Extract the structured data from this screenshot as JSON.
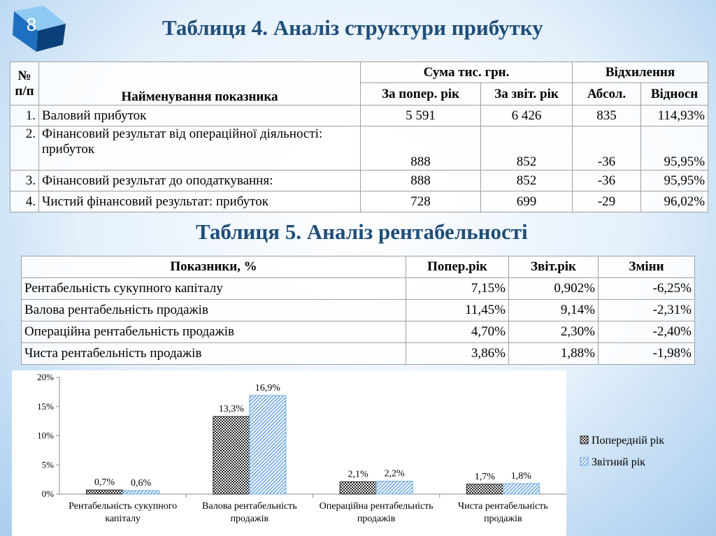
{
  "slide_number": "8",
  "table4": {
    "title": "Таблиця 4. Аналіз структури прибутку",
    "header": {
      "num": "№ п/п",
      "name": "Найменування показника",
      "sum": "Сума тис. грн.",
      "dev": "Відхилення",
      "sub": [
        "За попер. рік",
        "За звіт. рік",
        "Абсол.",
        "Відносн"
      ]
    },
    "rows": [
      [
        "1.",
        "Валовий прибуток",
        "5 591",
        "6 426",
        "835",
        "114,93%"
      ],
      [
        "2.",
        "Фінансовий результат від операційної діяльності: прибуток",
        "888",
        "852",
        "-36",
        "95,95%"
      ],
      [
        "3.",
        "Фінансовий результат до оподаткування:",
        "888",
        "852",
        "-36",
        "95,95%"
      ],
      [
        "4.",
        "Чистий фінансовий результат: прибуток",
        "728",
        "699",
        "-29",
        "96,02%"
      ]
    ]
  },
  "table5": {
    "title": "Таблиця 5. Аналіз рентабельності",
    "header": [
      "Показники, %",
      "Попер.рік",
      "Звіт.рік",
      "Зміни"
    ],
    "rows": [
      [
        "Рентабельність сукупного капіталу",
        "7,15%",
        "0,902%",
        "-6,25%"
      ],
      [
        "Валова рентабельність продажів",
        "11,45%",
        "9,14%",
        "-2,31%"
      ],
      [
        "Операційна рентабельність продажів",
        "4,70%",
        "2,30%",
        "-2,40%"
      ],
      [
        "Чиста рентабельність продажів",
        "3,86%",
        "1,88%",
        "-1,98%"
      ]
    ]
  },
  "chart_data": {
    "type": "bar",
    "categories": [
      "Рентабельність сукупного капіталу",
      "Валова рентабельність продажів",
      "Операційна рентабельність продажів",
      "Чиста рентабельність продажів"
    ],
    "series": [
      {
        "name": "Попередній рік",
        "color": "#222222",
        "values": [
          0.7,
          13.3,
          2.1,
          1.7
        ],
        "value_labels": [
          "0,7%",
          "13,3%",
          "2,1%",
          "1,7%"
        ]
      },
      {
        "name": "Звітний рік",
        "color": "#6fa8dc",
        "values": [
          0.6,
          16.9,
          2.2,
          1.8
        ],
        "value_labels": [
          "0,6%",
          "16,9%",
          "2,2%",
          "1,8%"
        ]
      }
    ],
    "ylim": [
      0,
      20
    ],
    "yticks": [
      {
        "value": 0,
        "label": "0%"
      },
      {
        "value": 5,
        "label": "5%"
      },
      {
        "value": 10,
        "label": "10%"
      },
      {
        "value": 15,
        "label": "15%"
      },
      {
        "value": 20,
        "label": "20%"
      }
    ],
    "grid": false,
    "legend": "right"
  }
}
